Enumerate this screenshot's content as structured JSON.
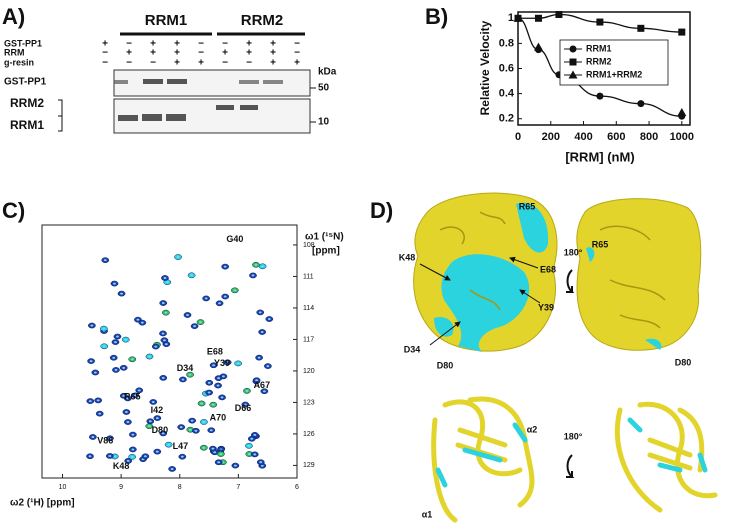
{
  "panels": {
    "a": "A)",
    "b": "B)",
    "c": "C)",
    "d": "D)"
  },
  "gel": {
    "headers": [
      "RRM1",
      "RRM2"
    ],
    "rows": [
      {
        "label": "GST-PP1",
        "signs": [
          "+",
          "−",
          "+",
          "+",
          "−",
          "−",
          "+",
          "+",
          "−"
        ]
      },
      {
        "label": "RRM",
        "signs": [
          "−",
          "+",
          "+",
          "+",
          "−",
          "+",
          "+",
          "+",
          "−"
        ]
      },
      {
        "label": "g-resin",
        "signs": [
          "−",
          "−",
          "−",
          "+",
          "+",
          "−",
          "−",
          "+",
          "+"
        ]
      }
    ],
    "band_labels": [
      "GST-PP1",
      "RRM2",
      "RRM1"
    ],
    "unit": "kDa",
    "markers": [
      50,
      10
    ]
  },
  "chart_data": {
    "type": "scatter",
    "x_label": "[RRM] (nM)",
    "y_label": "Relative Velocity",
    "xlim": [
      0,
      1050
    ],
    "ylim": [
      0.15,
      1.05
    ],
    "xticks": [
      0,
      200,
      400,
      600,
      800,
      1000
    ],
    "yticks": [
      0.2,
      0.4,
      0.6,
      0.8,
      1
    ],
    "legend": "right",
    "series": [
      {
        "name": "RRM1",
        "color": "#111111",
        "marker": "circle",
        "fit": true,
        "x": [
          0,
          125,
          250,
          500,
          750,
          1000
        ],
        "values": [
          1.0,
          0.75,
          0.55,
          0.38,
          0.32,
          0.22
        ]
      },
      {
        "name": "RRM2",
        "color": "#111111",
        "marker": "square",
        "fit": true,
        "x": [
          0,
          125,
          250,
          500,
          750,
          1000
        ],
        "values": [
          1.0,
          1.0,
          1.03,
          0.97,
          0.92,
          0.89
        ]
      },
      {
        "name": "RRM1+RRM2",
        "color": "#111111",
        "marker": "triangle",
        "fit": false,
        "x": [
          0,
          125,
          1000
        ],
        "values": [
          1.0,
          0.77,
          0.25
        ]
      }
    ]
  },
  "nmr": {
    "y_label": "ω1 (¹⁵N)",
    "y_unit": "[ppm]",
    "x_label": "ω2 (¹H) [ppm]",
    "xlim": [
      10.35,
      6
    ],
    "ylim": [
      106.1,
      130.2
    ],
    "xticks": [
      10,
      9,
      8,
      7,
      6
    ],
    "yticks": [
      108,
      111,
      114,
      117,
      120,
      123,
      126,
      129
    ],
    "peaks": [
      {
        "text": "G40",
        "x": 7.06,
        "y": 107.5
      },
      {
        "text": "E68",
        "x": 7.4,
        "y": 118.2
      },
      {
        "text": "Y39",
        "x": 7.28,
        "y": 119.3
      },
      {
        "text": "D34",
        "x": 7.91,
        "y": 119.8
      },
      {
        "text": "A67",
        "x": 6.6,
        "y": 121.4
      },
      {
        "text": "R65",
        "x": 8.81,
        "y": 122.5
      },
      {
        "text": "D66",
        "x": 6.92,
        "y": 123.6
      },
      {
        "text": "I42",
        "x": 8.39,
        "y": 123.8
      },
      {
        "text": "A70",
        "x": 7.35,
        "y": 124.5
      },
      {
        "text": "D80",
        "x": 8.34,
        "y": 125.7
      },
      {
        "text": "L47",
        "x": 7.99,
        "y": 127.2
      },
      {
        "text": "V86",
        "x": 9.27,
        "y": 126.7
      },
      {
        "text": "K48",
        "x": 9.0,
        "y": 129.1
      }
    ]
  },
  "structure": {
    "labels": [
      "R65",
      "K48",
      "E68",
      "Y39",
      "D34",
      "D80",
      "180°",
      "R65",
      "D80",
      "α2",
      "180°",
      "α1"
    ]
  }
}
